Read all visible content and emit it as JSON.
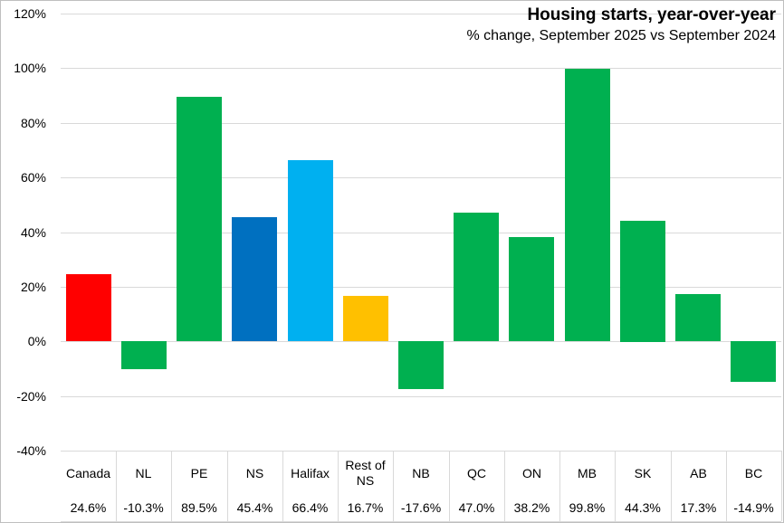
{
  "header": {
    "title": "Housing starts, year-over-year",
    "subtitle": "% change, September 2025 vs September 2024"
  },
  "chart_data": {
    "type": "bar",
    "title": "Housing starts, year-over-year",
    "subtitle": "% change, September 2025 vs September 2024",
    "categories": [
      "Canada",
      "NL",
      "PE",
      "NS",
      "Halifax",
      "Rest of NS",
      "NB",
      "QC",
      "ON",
      "MB",
      "SK",
      "AB",
      "BC"
    ],
    "values": [
      24.6,
      -10.3,
      89.5,
      45.4,
      66.4,
      16.7,
      -17.6,
      47.0,
      38.2,
      99.8,
      44.3,
      17.3,
      -14.9
    ],
    "value_labels": [
      "24.6%",
      "-10.3%",
      "89.5%",
      "45.4%",
      "66.4%",
      "16.7%",
      "-17.6%",
      "47.0%",
      "38.2%",
      "99.8%",
      "44.3%",
      "17.3%",
      "-14.9%"
    ],
    "bar_colors": [
      "#FF0000",
      "#00B050",
      "#00B050",
      "#0070C0",
      "#00B0F0",
      "#FFC000",
      "#00B050",
      "#00B050",
      "#00B050",
      "#00B050",
      "#00B050",
      "#00B050",
      "#00B050"
    ],
    "y_ticks": [
      "120%",
      "100%",
      "80%",
      "60%",
      "40%",
      "20%",
      "0%",
      "-20%",
      "-40%"
    ],
    "y_tick_values": [
      120,
      100,
      80,
      60,
      40,
      20,
      0,
      -20,
      -40
    ],
    "ylim": [
      -40,
      120
    ],
    "xlabel": "",
    "ylabel": "",
    "grid": true,
    "gridline_color": "#D9D9D9",
    "legend": "none",
    "accent_colors": {
      "canada": "#FF0000",
      "default": "#00B050",
      "ns": "#0070C0",
      "halifax": "#00B0F0",
      "rest_of_ns": "#FFC000"
    }
  }
}
